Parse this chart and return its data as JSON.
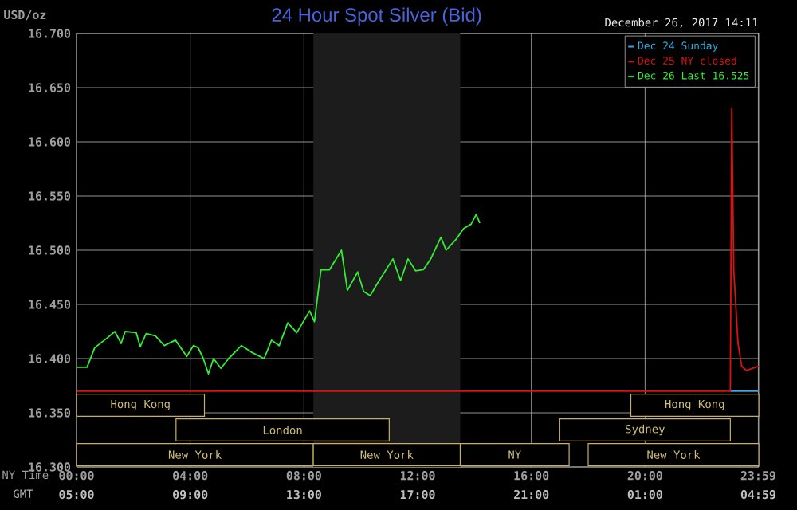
{
  "chart_data": {
    "type": "line",
    "title": "24 Hour Spot Silver (Bid)",
    "ylabel": "USD/oz",
    "xlabel": "NY Time",
    "x2label": "GMT",
    "annotations": [
      "December 26, 2017 14:11"
    ],
    "xlim": [
      0,
      24
    ],
    "ylim": [
      16.3,
      16.7
    ],
    "xticks": [
      {
        "value": 0,
        "label": "00:00"
      },
      {
        "value": 4,
        "label": "04:00"
      },
      {
        "value": 8,
        "label": "08:00"
      },
      {
        "value": 12,
        "label": "12:00"
      },
      {
        "value": 16,
        "label": "16:00"
      },
      {
        "value": 20,
        "label": "20:00"
      },
      {
        "value": 23.983,
        "label": "23:59"
      }
    ],
    "x2lim": [
      "2017-12-26T05:00",
      "2017-12-27T05:00"
    ],
    "x2ticks": [
      {
        "value": "2017-12-26T05:00",
        "label": "05:00"
      },
      {
        "value": "2017-12-26T09:00",
        "label": "09:00"
      },
      {
        "value": "2017-12-26T13:00",
        "label": "13:00"
      },
      {
        "value": "2017-12-26T17:00",
        "label": "17:00"
      },
      {
        "value": "2017-12-26T21:00",
        "label": "21:00"
      },
      {
        "value": "2017-12-27T01:00",
        "label": "01:00"
      },
      {
        "value": "2017-12-27T04:59",
        "label": "04:59"
      }
    ],
    "yticks": [
      {
        "value": 16.3,
        "label": "16.300"
      },
      {
        "value": 16.35,
        "label": "16.350"
      },
      {
        "value": 16.4,
        "label": "16.400"
      },
      {
        "value": 16.45,
        "label": "16.450"
      },
      {
        "value": 16.5,
        "label": "16.500"
      },
      {
        "value": 16.55,
        "label": "16.550"
      },
      {
        "value": 16.6,
        "label": "16.600"
      },
      {
        "value": 16.65,
        "label": "16.650"
      },
      {
        "value": 16.7,
        "label": "16.700"
      }
    ],
    "grid": true,
    "legend": "top right",
    "marker": "none",
    "line_style": "solid",
    "bands": [
      {
        "axis": "x",
        "from": 8.33,
        "to": 13.5,
        "color": "#1c1c1c"
      },
      {
        "axis": "x",
        "from": 0,
        "to": 8.33,
        "label": "New York",
        "color": "#c8b060"
      },
      {
        "axis": "x",
        "from": 8.33,
        "to": 13.5,
        "label": "New York",
        "color": "#c8b060"
      },
      {
        "axis": "x",
        "from": 13.5,
        "to": 17.33,
        "label": "NY",
        "color": "#c8b060"
      },
      {
        "axis": "x",
        "from": 18,
        "to": 24,
        "label": "New York",
        "color": "#c8b060"
      },
      {
        "axis": "x",
        "from": 3.5,
        "to": 11,
        "label": "London",
        "color": "#c8b060"
      },
      {
        "axis": "x",
        "from": 17,
        "to": 23,
        "label": "Sydney",
        "color": "#c8b060"
      },
      {
        "axis": "x",
        "from": 0,
        "to": 4.5,
        "label": "Hong Kong",
        "color": "#c8b060"
      },
      {
        "axis": "x",
        "from": 19.5,
        "to": 24,
        "label": "Hong Kong",
        "color": "#c8b060"
      }
    ],
    "series": [
      {
        "name": "Dec 24 Sunday",
        "color": "#33aadd",
        "x": [
          23.0,
          24.0
        ],
        "values": [
          16.37,
          16.37
        ]
      },
      {
        "name": "Dec 25 NY closed",
        "color": "#dd1111",
        "x": [
          0,
          23.0,
          23.05,
          23.07,
          23.12,
          23.27,
          23.4,
          23.57,
          24.0
        ],
        "values": [
          16.37,
          16.37,
          16.631,
          16.59,
          16.482,
          16.414,
          16.393,
          16.389,
          16.393
        ]
      },
      {
        "name": "Dec 26 Last 16.525",
        "color": "#33ee33",
        "x": [
          0,
          0.37,
          0.64,
          1.08,
          1.35,
          1.57,
          1.71,
          2.1,
          2.24,
          2.45,
          2.77,
          3.09,
          3.48,
          3.88,
          4.11,
          4.28,
          4.46,
          4.64,
          4.82,
          5.08,
          5.35,
          5.8,
          6.15,
          6.6,
          6.86,
          7.13,
          7.43,
          7.75,
          8.2,
          8.37,
          8.6,
          8.9,
          9.32,
          9.53,
          9.89,
          10.1,
          10.33,
          10.6,
          11.13,
          11.4,
          11.66,
          11.93,
          12.2,
          12.46,
          12.82,
          13.0,
          13.35,
          13.62,
          13.88,
          14.06,
          14.19
        ],
        "values": [
          16.392,
          16.392,
          16.41,
          16.419,
          16.425,
          16.414,
          16.425,
          16.424,
          16.411,
          16.423,
          16.421,
          16.412,
          16.417,
          16.402,
          16.412,
          16.41,
          16.4,
          16.386,
          16.4,
          16.391,
          16.4,
          16.412,
          16.406,
          16.4,
          16.417,
          16.412,
          16.433,
          16.424,
          16.444,
          16.434,
          16.482,
          16.482,
          16.5,
          16.463,
          16.48,
          16.462,
          16.458,
          16.47,
          16.492,
          16.472,
          16.492,
          16.481,
          16.482,
          16.492,
          16.512,
          16.5,
          16.51,
          16.52,
          16.524,
          16.533,
          16.525
        ]
      }
    ]
  }
}
